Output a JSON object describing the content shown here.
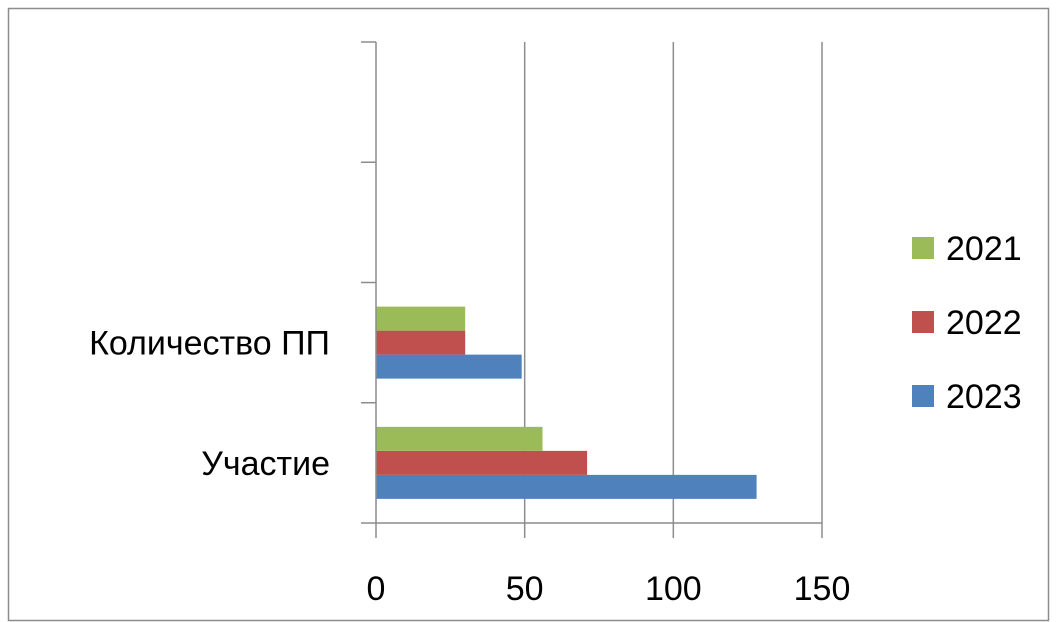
{
  "chart_data": {
    "type": "bar",
    "orientation": "horizontal",
    "categories": [
      "Участие",
      "Количество ПП",
      "",
      ""
    ],
    "series": [
      {
        "name": "2023",
        "color": "#4F81BD",
        "values": [
          128,
          49,
          null,
          null
        ]
      },
      {
        "name": "2022",
        "color": "#C0504D",
        "values": [
          71,
          30,
          null,
          null
        ]
      },
      {
        "name": "2021",
        "color": "#9BBB59",
        "values": [
          56,
          30,
          null,
          null
        ]
      }
    ],
    "xlim": [
      0,
      150
    ],
    "xticks": [
      "0",
      "50",
      "100",
      "150"
    ],
    "grid": "vertical",
    "legend_position": "right",
    "legend_order": [
      "2021",
      "2022",
      "2023"
    ],
    "title": "",
    "xlabel": "",
    "ylabel": ""
  }
}
